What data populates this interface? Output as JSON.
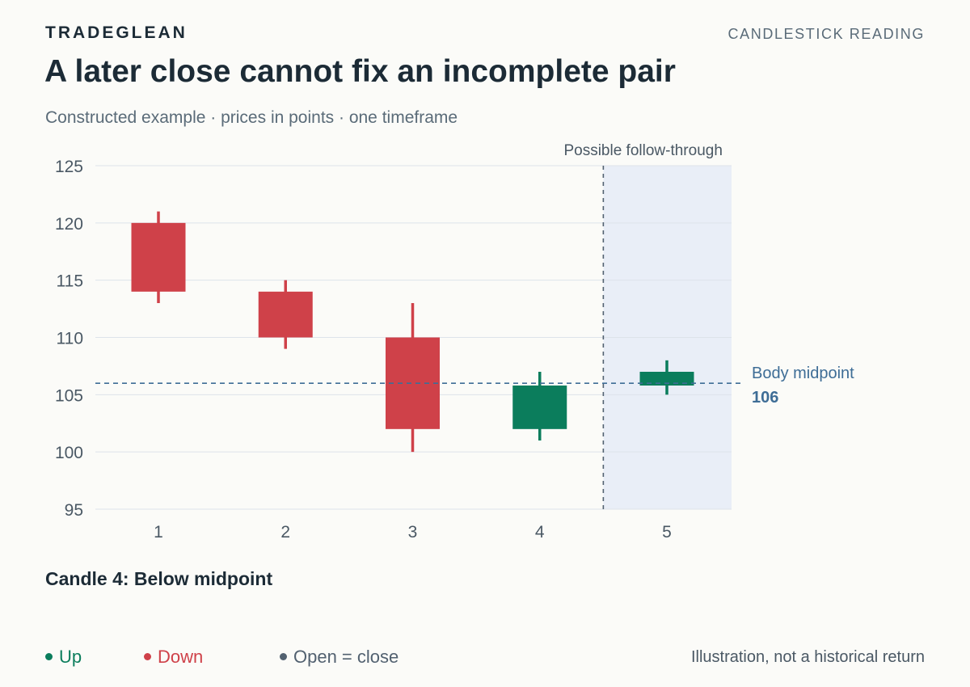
{
  "header": {
    "brand": "TRADEGLEAN",
    "section": "CANDLESTICK READING",
    "title": "A later close cannot fix an incomplete pair",
    "subtitle": "Constructed example · prices in points · one timeframe"
  },
  "chart_data": {
    "type": "candlestick",
    "ylim": [
      95,
      125
    ],
    "yticks": [
      95,
      100,
      105,
      110,
      115,
      120,
      125
    ],
    "grid": true,
    "categories": [
      "1",
      "2",
      "3",
      "4",
      "5"
    ],
    "candles": [
      {
        "x": "1",
        "open": 120,
        "close": 114,
        "high": 121,
        "low": 113,
        "direction": "down"
      },
      {
        "x": "2",
        "open": 114,
        "close": 110,
        "high": 115,
        "low": 109,
        "direction": "down"
      },
      {
        "x": "3",
        "open": 110,
        "close": 102,
        "high": 113,
        "low": 100,
        "direction": "down"
      },
      {
        "x": "4",
        "open": 102,
        "close": 105.8,
        "high": 107,
        "low": 101,
        "direction": "up"
      },
      {
        "x": "5",
        "open": 105.8,
        "close": 107,
        "high": 108,
        "low": 105,
        "direction": "up"
      }
    ],
    "shaded_region": {
      "from_index": 4,
      "label": "Possible follow-through"
    },
    "reference_line": {
      "value": 106,
      "label": "Body midpoint",
      "value_label": "106"
    },
    "colors": {
      "up": "#0b7d5c",
      "down": "#cf4149",
      "neutral": "#526170",
      "reference": "#3e6d96",
      "shade": "#e9eef7"
    }
  },
  "status_text": "Candle 4: Below midpoint",
  "legend": [
    {
      "label": "Up",
      "color": "#0b7d5c"
    },
    {
      "label": "Down",
      "color": "#cf4149"
    },
    {
      "label": "Open = close",
      "color": "#526170"
    }
  ],
  "note": "Illustration, not a historical return"
}
